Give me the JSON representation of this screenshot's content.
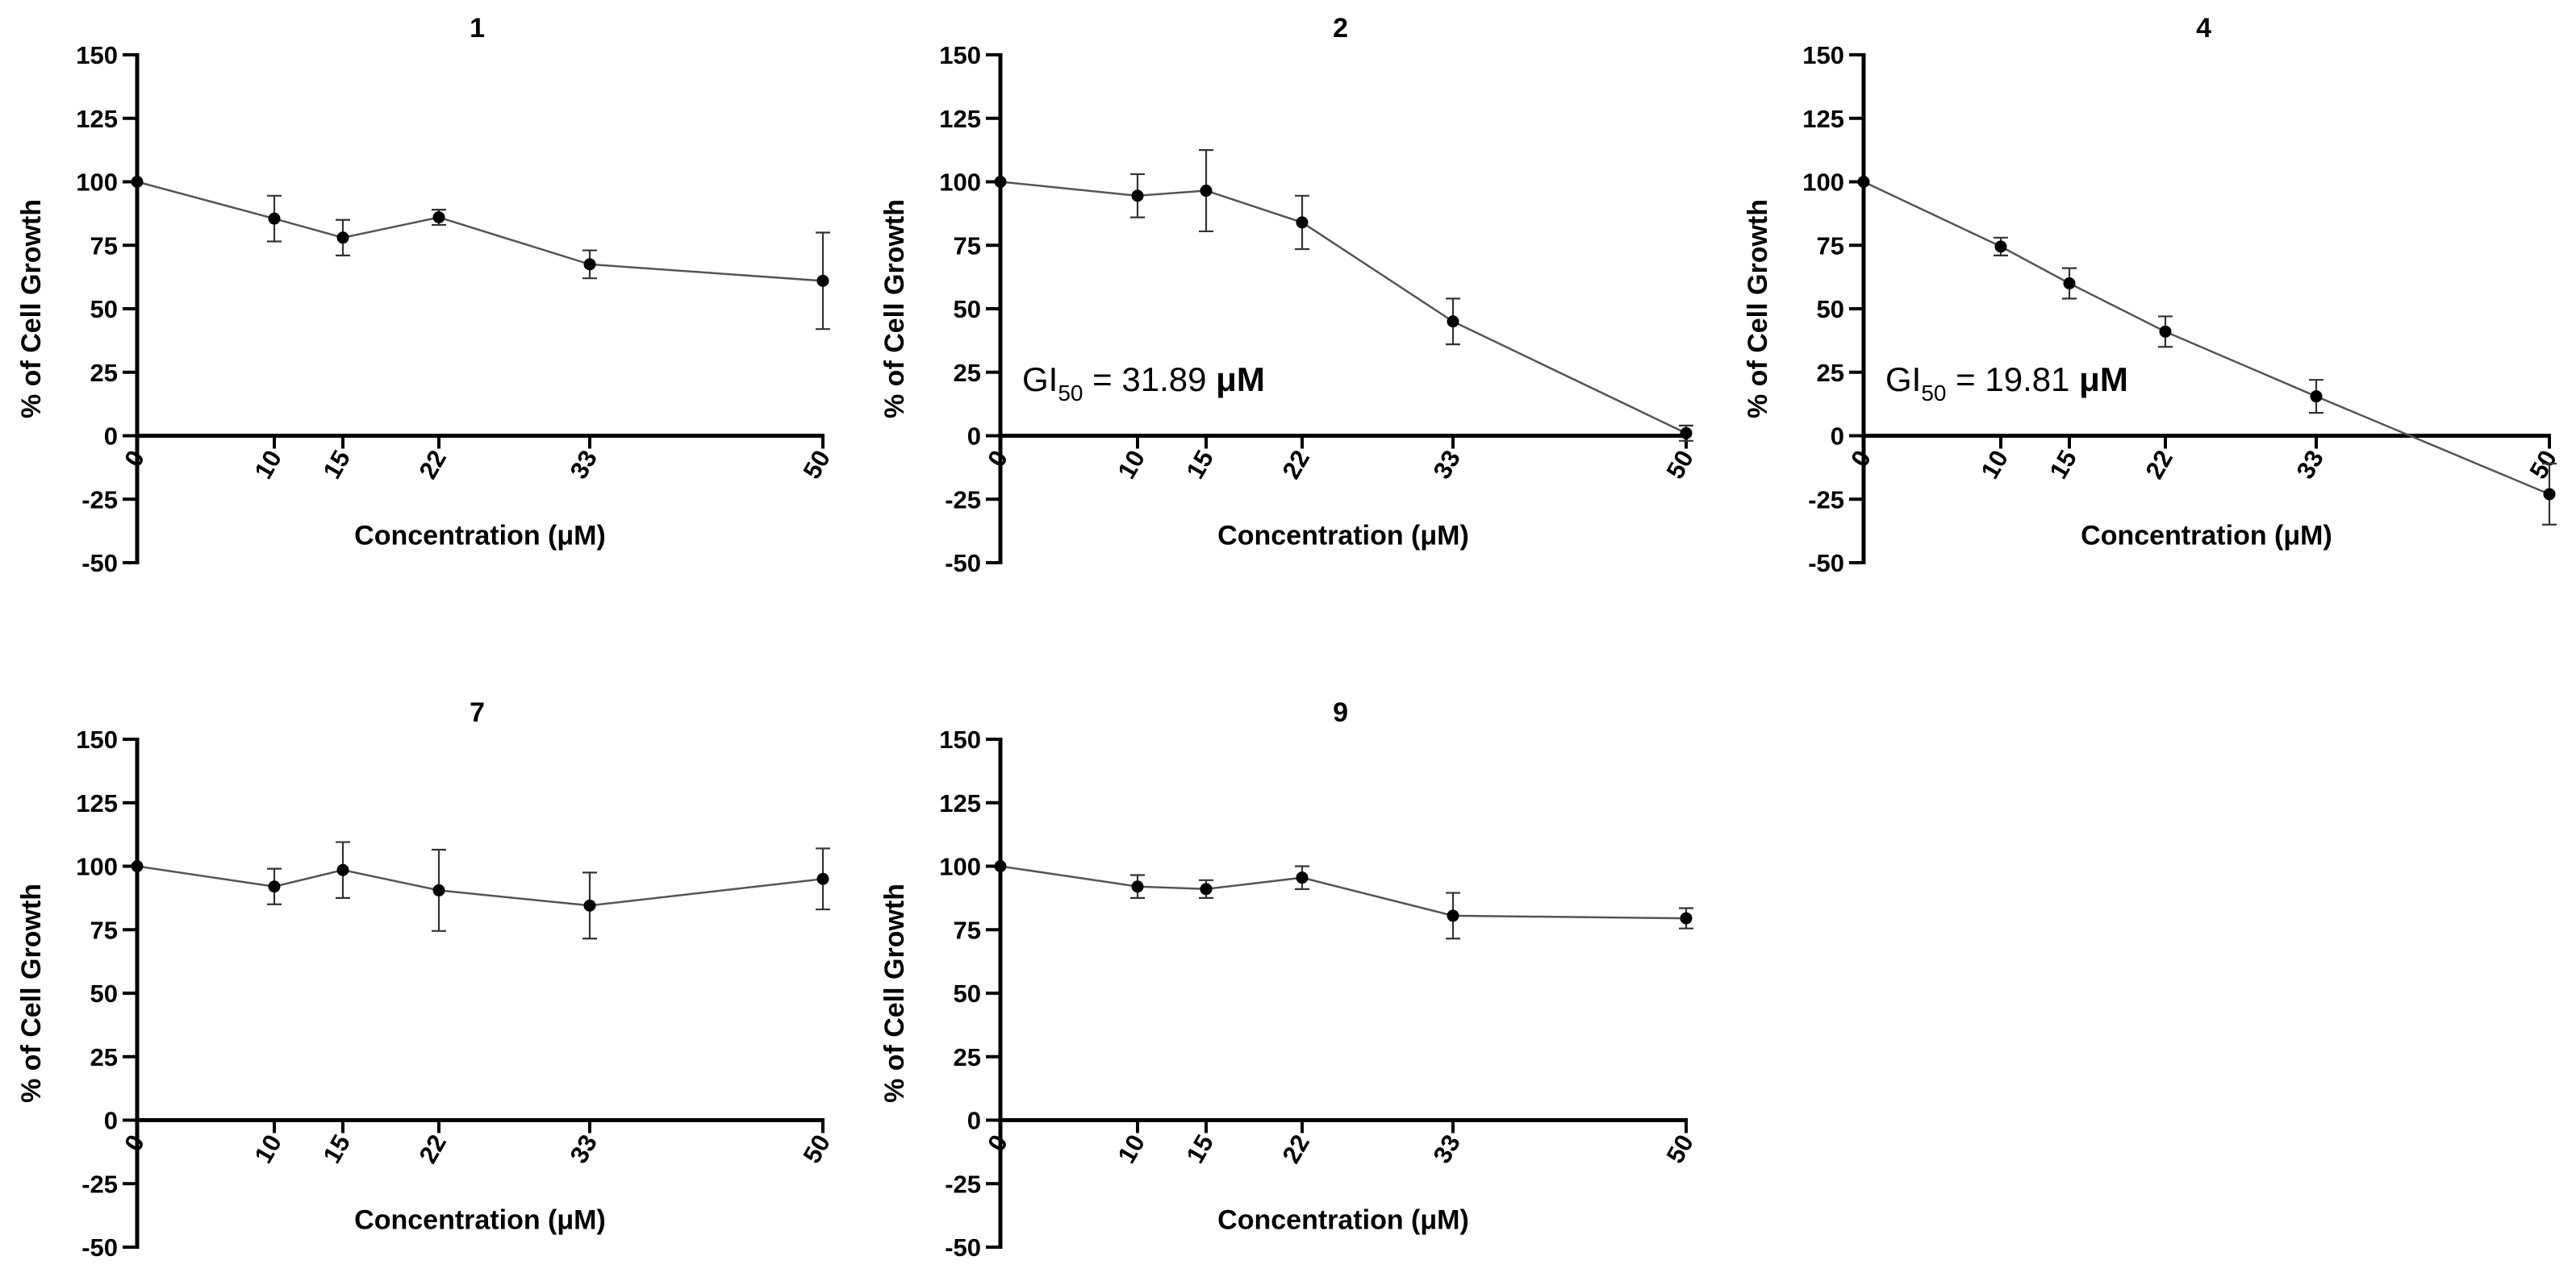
{
  "figure": {
    "ylabel_text": "% of Cell Growth",
    "xlabel_text": "Concentration (",
    "xlabel_unit": "μM",
    "xlabel_close": ")"
  },
  "chart_data": [
    {
      "type": "line",
      "title": "1",
      "xlabel": "Concentration (μM)",
      "ylabel": "% of Cell Growth",
      "ylim": [
        -50,
        150
      ],
      "yticks": [
        -50,
        -25,
        0,
        25,
        50,
        75,
        100,
        125,
        150
      ],
      "xlim": [
        0,
        50
      ],
      "xticks": [
        0,
        10,
        15,
        22,
        33,
        50
      ],
      "x": [
        0,
        10,
        15,
        22,
        33,
        50
      ],
      "y": [
        100,
        85.5,
        78,
        86,
        67.5,
        61
      ],
      "err": [
        0,
        9,
        7,
        3,
        5.5,
        19
      ],
      "annotation": null
    },
    {
      "type": "line",
      "title": "2",
      "xlabel": "Concentration (μM)",
      "ylabel": "% of Cell Growth",
      "ylim": [
        -50,
        150
      ],
      "yticks": [
        -50,
        -25,
        0,
        25,
        50,
        75,
        100,
        125,
        150
      ],
      "xlim": [
        0,
        50
      ],
      "xticks": [
        0,
        10,
        15,
        22,
        33,
        50
      ],
      "x": [
        0,
        10,
        15,
        22,
        33,
        50
      ],
      "y": [
        100,
        94.5,
        96.5,
        84,
        45,
        1
      ],
      "err": [
        0,
        8.5,
        16,
        10.5,
        9,
        3
      ],
      "annotation": {
        "prefix": "GI",
        "sub": "50",
        "mid": " = 31.89 ",
        "unit": "μM"
      }
    },
    {
      "type": "line",
      "title": "4",
      "xlabel": "Concentration (μM)",
      "ylabel": "% of Cell Growth",
      "ylim": [
        -50,
        150
      ],
      "yticks": [
        -50,
        -25,
        0,
        25,
        50,
        75,
        100,
        125,
        150
      ],
      "xlim": [
        0,
        50
      ],
      "xticks": [
        0,
        10,
        15,
        22,
        33,
        50
      ],
      "x": [
        0,
        10,
        15,
        22,
        33,
        50
      ],
      "y": [
        100,
        74.5,
        60,
        41,
        15.5,
        -23
      ],
      "err": [
        0,
        3.5,
        6,
        6,
        6.5,
        12
      ],
      "annotation": {
        "prefix": "GI",
        "sub": "50",
        "mid": " = 19.81 ",
        "unit": "μM"
      }
    },
    {
      "type": "line",
      "title": "7",
      "xlabel": "Concentration (μM)",
      "ylabel": "% of Cell Growth",
      "ylim": [
        -50,
        150
      ],
      "yticks": [
        -50,
        -25,
        0,
        25,
        50,
        75,
        100,
        125,
        150
      ],
      "xlim": [
        0,
        50
      ],
      "xticks": [
        0,
        10,
        15,
        22,
        33,
        50
      ],
      "x": [
        0,
        10,
        15,
        22,
        33,
        50
      ],
      "y": [
        100,
        92,
        98.5,
        90.5,
        84.5,
        95
      ],
      "err": [
        0,
        7,
        11,
        16,
        13,
        12
      ],
      "annotation": null
    },
    {
      "type": "line",
      "title": "9",
      "xlabel": "Concentration (μM)",
      "ylabel": "% of Cell Growth",
      "ylim": [
        -50,
        150
      ],
      "yticks": [
        -50,
        -25,
        0,
        25,
        50,
        75,
        100,
        125,
        150
      ],
      "xlim": [
        0,
        50
      ],
      "xticks": [
        0,
        10,
        15,
        22,
        33,
        50
      ],
      "x": [
        0,
        10,
        15,
        22,
        33,
        50
      ],
      "y": [
        100,
        92,
        91,
        95.5,
        80.5,
        79.5
      ],
      "err": [
        0,
        4.5,
        3.5,
        4.5,
        9,
        4
      ],
      "annotation": null
    }
  ]
}
